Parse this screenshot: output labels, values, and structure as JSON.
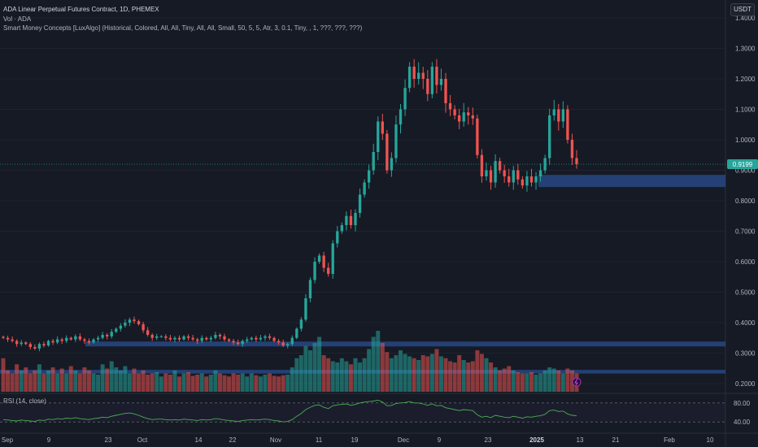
{
  "header": {
    "title": "ADA Linear Perpetual Futures Contract, 1D, PHEMEX",
    "vol_label": "Vol · ADA",
    "indicator_label": "Smart Money Concepts [LuxAlgo] (Historical, Colored, All, All, Tiny, All, All, Small, 50, 5, 5, Atr, 3, 0.1, Tiny, , 1, ???, ???, ???)",
    "currency": "USDT"
  },
  "price_axis": {
    "ticks": [
      "1.4000",
      "1.3000",
      "1.2000",
      "1.1000",
      "1.0000",
      "0.9000",
      "0.8000",
      "0.7000",
      "0.6000",
      "0.5000",
      "0.4000",
      "0.3000",
      "0.2000"
    ],
    "last_price": "0.9199"
  },
  "rsi": {
    "label": "RSI (14, close)",
    "ticks": [
      "80.00",
      "40.00"
    ]
  },
  "time_axis": {
    "ticks": [
      "Sep",
      "9",
      "23",
      "Oct",
      "14",
      "22",
      "Nov",
      "11",
      "19",
      "Dec",
      "9",
      "23",
      "2025",
      "13",
      "21",
      "Feb",
      "10"
    ]
  },
  "colors": {
    "up": "#26a69a",
    "down": "#ef5350",
    "zone": "#2a4d8f",
    "rsi_line": "#4caf50",
    "background": "#161a25"
  },
  "chart_data": {
    "type": "candlestick",
    "symbol": "ADA Linear Perpetual Futures Contract",
    "interval": "1D",
    "exchange": "PHEMEX",
    "ylim": [
      0.15,
      1.42
    ],
    "last_price": 0.9199,
    "closes": [
      0.35,
      0.345,
      0.34,
      0.33,
      0.335,
      0.33,
      0.32,
      0.315,
      0.33,
      0.325,
      0.34,
      0.335,
      0.345,
      0.34,
      0.35,
      0.345,
      0.355,
      0.345,
      0.34,
      0.335,
      0.345,
      0.35,
      0.36,
      0.355,
      0.37,
      0.38,
      0.39,
      0.4,
      0.41,
      0.405,
      0.395,
      0.375,
      0.36,
      0.35,
      0.355,
      0.355,
      0.35,
      0.345,
      0.35,
      0.345,
      0.355,
      0.35,
      0.345,
      0.34,
      0.35,
      0.345,
      0.35,
      0.36,
      0.355,
      0.345,
      0.34,
      0.335,
      0.33,
      0.34,
      0.345,
      0.35,
      0.345,
      0.35,
      0.355,
      0.35,
      0.34,
      0.335,
      0.325,
      0.33,
      0.35,
      0.38,
      0.41,
      0.48,
      0.54,
      0.6,
      0.62,
      0.58,
      0.56,
      0.66,
      0.7,
      0.72,
      0.75,
      0.72,
      0.76,
      0.82,
      0.86,
      0.9,
      0.96,
      1.06,
      1.02,
      0.9,
      0.94,
      1.05,
      1.1,
      1.17,
      1.24,
      1.2,
      1.22,
      1.2,
      1.15,
      1.24,
      1.18,
      1.2,
      1.12,
      1.1,
      1.08,
      1.06,
      1.09,
      1.08,
      1.07,
      0.95,
      0.88,
      0.9,
      0.86,
      0.93,
      0.9,
      0.88,
      0.86,
      0.9,
      0.87,
      0.85,
      0.88,
      0.86,
      0.88,
      0.9,
      0.94,
      1.08,
      1.1,
      1.06,
      1.1,
      1.0,
      0.94,
      0.92
    ],
    "volumes": [
      0.55,
      0.35,
      0.3,
      0.45,
      0.35,
      0.4,
      0.3,
      0.35,
      0.45,
      0.3,
      0.35,
      0.4,
      0.3,
      0.38,
      0.3,
      0.42,
      0.35,
      0.3,
      0.4,
      0.35,
      0.3,
      0.28,
      0.45,
      0.38,
      0.5,
      0.4,
      0.35,
      0.42,
      0.3,
      0.38,
      0.3,
      0.35,
      0.28,
      0.3,
      0.32,
      0.25,
      0.3,
      0.28,
      0.35,
      0.25,
      0.3,
      0.32,
      0.26,
      0.28,
      0.3,
      0.25,
      0.28,
      0.35,
      0.3,
      0.27,
      0.25,
      0.3,
      0.28,
      0.3,
      0.25,
      0.3,
      0.27,
      0.25,
      0.28,
      0.3,
      0.26,
      0.25,
      0.27,
      0.28,
      0.4,
      0.55,
      0.6,
      0.75,
      0.68,
      0.8,
      0.9,
      0.6,
      0.55,
      0.5,
      0.48,
      0.55,
      0.5,
      0.45,
      0.55,
      0.48,
      0.55,
      0.7,
      0.9,
      1.0,
      0.8,
      0.65,
      0.55,
      0.6,
      0.68,
      0.62,
      0.58,
      0.55,
      0.52,
      0.6,
      0.58,
      0.62,
      0.7,
      0.58,
      0.55,
      0.5,
      0.48,
      0.6,
      0.52,
      0.48,
      0.5,
      0.68,
      0.62,
      0.55,
      0.48,
      0.4,
      0.35,
      0.38,
      0.42,
      0.35,
      0.32,
      0.3,
      0.3,
      0.32,
      0.28,
      0.3,
      0.35,
      0.4,
      0.38,
      0.35,
      0.3,
      0.38,
      0.35,
      0.3
    ],
    "rsi_values": [
      45,
      44,
      43,
      42,
      44,
      43,
      42,
      41,
      44,
      43,
      46,
      45,
      47,
      46,
      48,
      47,
      49,
      47,
      46,
      45,
      47,
      48,
      50,
      49,
      52,
      54,
      56,
      58,
      59,
      57,
      54,
      50,
      47,
      45,
      46,
      46,
      45,
      44,
      45,
      44,
      46,
      45,
      44,
      43,
      45,
      44,
      45,
      47,
      46,
      44,
      43,
      42,
      41,
      43,
      44,
      45,
      44,
      45,
      46,
      45,
      43,
      42,
      40,
      41,
      45,
      52,
      58,
      66,
      71,
      75,
      76,
      71,
      68,
      74,
      76,
      77,
      78,
      75,
      77,
      80,
      82,
      83,
      84,
      86,
      82,
      74,
      75,
      79,
      80,
      81,
      83,
      80,
      80,
      78,
      75,
      78,
      74,
      75,
      70,
      68,
      66,
      64,
      66,
      65,
      64,
      55,
      50,
      52,
      49,
      54,
      52,
      50,
      49,
      52,
      50,
      48,
      51,
      50,
      52,
      53,
      56,
      64,
      65,
      62,
      63,
      57,
      54,
      53
    ],
    "zones": [
      {
        "label": "demand-zone-1",
        "top": 0.885,
        "bottom": 0.845
      },
      {
        "label": "demand-zone-2",
        "top": 0.338,
        "bottom": 0.322
      },
      {
        "label": "demand-zone-3",
        "top": 0.245,
        "bottom": 0.233
      }
    ],
    "rsi_levels": [
      80,
      40
    ],
    "grid": true
  }
}
